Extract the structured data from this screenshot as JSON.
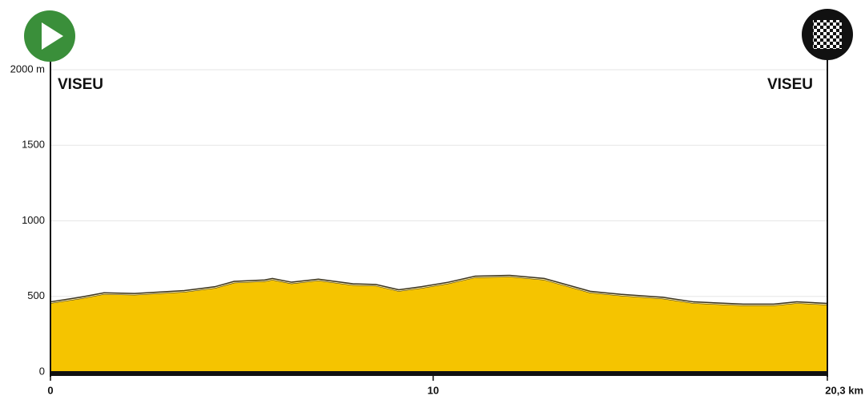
{
  "chart_data": {
    "type": "area",
    "x": [
      0,
      0.77,
      1.4,
      2.2,
      3.5,
      4.3,
      4.8,
      5.6,
      5.8,
      6.3,
      7.0,
      7.9,
      8.5,
      9.1,
      9.7,
      10.4,
      11.1,
      12.0,
      12.9,
      14.1,
      14.9,
      16.0,
      16.8,
      18.1,
      18.9,
      19.5,
      20.3
    ],
    "values": [
      460,
      490,
      520,
      515,
      535,
      560,
      595,
      605,
      615,
      590,
      610,
      580,
      575,
      540,
      560,
      590,
      630,
      635,
      615,
      530,
      510,
      490,
      460,
      445,
      445,
      460,
      450
    ],
    "color": "#f5c400",
    "xlim": [
      0,
      20.3
    ],
    "ylim": [
      0,
      2000
    ],
    "xticks": [
      0,
      10,
      {
        "value": 20.3,
        "label": "20,3 km"
      }
    ],
    "yticks": [
      0,
      500,
      1000,
      1500,
      {
        "value": 2000,
        "label": "2000 m"
      }
    ],
    "grid": true,
    "annotations": [
      "VISEU",
      "VISEU"
    ]
  }
}
